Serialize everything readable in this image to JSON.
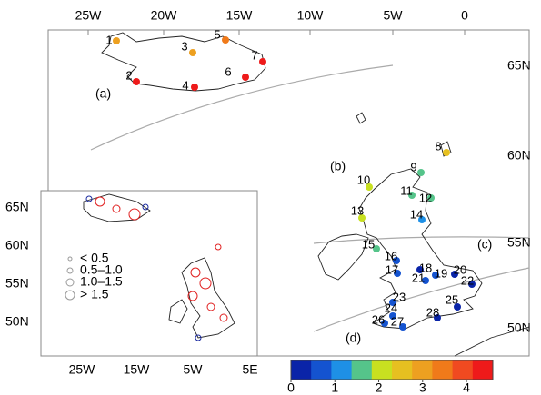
{
  "top_axis_labels": [
    "25W",
    "20W",
    "15W",
    "10W",
    "5W",
    "0"
  ],
  "right_axis_labels": [
    "65N",
    "60N",
    "55N",
    "50N"
  ],
  "region_labels": [
    "(a)",
    "(b)",
    "(c)",
    "(d)"
  ],
  "stations": [
    {
      "label": "1",
      "value": 3.2
    },
    {
      "label": "2",
      "value": 4.2
    },
    {
      "label": "3",
      "value": 3.2
    },
    {
      "label": "4",
      "value": 4.3
    },
    {
      "label": "5",
      "value": 3.3
    },
    {
      "label": "6",
      "value": 4.3
    },
    {
      "label": "7",
      "value": 4.3
    },
    {
      "label": "8",
      "value": 2.3
    },
    {
      "label": "9",
      "value": 1.7
    },
    {
      "label": "10",
      "value": 2.0
    },
    {
      "label": "11",
      "value": 1.6
    },
    {
      "label": "12",
      "value": 1.6
    },
    {
      "label": "13",
      "value": 2.1
    },
    {
      "label": "14",
      "value": 1.1
    },
    {
      "label": "15",
      "value": 1.5
    },
    {
      "label": "16",
      "value": 0.9
    },
    {
      "label": "17",
      "value": 0.9
    },
    {
      "label": "18",
      "value": 0.3
    },
    {
      "label": "19",
      "value": 0.7
    },
    {
      "label": "20",
      "value": 0.4
    },
    {
      "label": "21",
      "value": 0.6
    },
    {
      "label": "22",
      "value": 0.3
    },
    {
      "label": "23",
      "value": 0.7
    },
    {
      "label": "24",
      "value": 0.7
    },
    {
      "label": "25",
      "value": 0.2
    },
    {
      "label": "26",
      "value": 0.6
    },
    {
      "label": "27",
      "value": 0.9
    },
    {
      "label": "28",
      "value": 0.3
    }
  ],
  "colorbar": {
    "lim": [
      0,
      4.6
    ],
    "ticks": [
      0,
      1,
      2,
      3,
      4
    ],
    "colors": [
      "#0a24a8",
      "#1453d0",
      "#1e90e6",
      "#55c48a",
      "#c8e020",
      "#e6c020",
      "#eda020",
      "#f07a1a",
      "#f04a20",
      "#ee1a1a"
    ]
  },
  "inset": {
    "left_labels": [
      "65N",
      "60N",
      "55N",
      "50N"
    ],
    "bottom_labels": [
      "25W",
      "15W",
      "5W",
      "5E"
    ],
    "legend": [
      "< 0.5",
      "0.5–1.0",
      "1.0–1.5",
      "> 1.5"
    ]
  }
}
